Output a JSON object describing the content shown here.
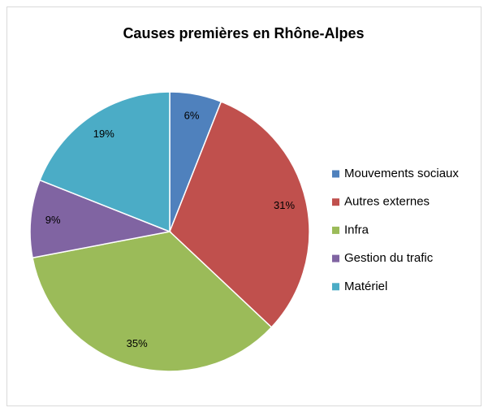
{
  "chart_data": {
    "type": "pie",
    "title": "Causes premières en Rhône-Alpes",
    "categories": [
      "Mouvements sociaux",
      "Autres externes",
      "Infra",
      "Gestion du trafic",
      "Matériel"
    ],
    "values": [
      6,
      31,
      35,
      9,
      19
    ],
    "value_labels": [
      "6%",
      "31%",
      "35%",
      "9%",
      "19%"
    ],
    "colors": [
      "#4f81bd",
      "#c0504d",
      "#9bbb59",
      "#8064a2",
      "#4bacc6"
    ],
    "legend": "right"
  }
}
